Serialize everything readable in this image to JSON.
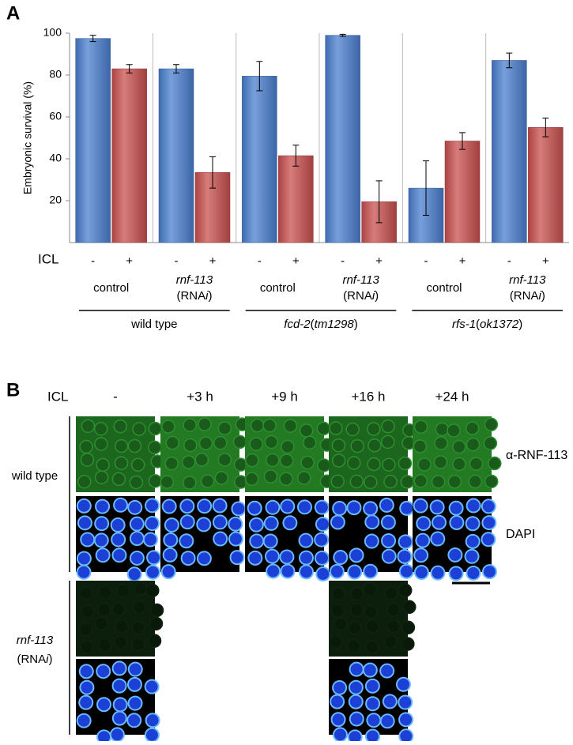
{
  "panel_labels": [
    "A",
    "B"
  ],
  "chart_data": {
    "type": "bar",
    "y_label": "Embryonic survival (%)",
    "x_row_label": "ICL",
    "ylim": [
      0,
      100
    ],
    "yticks": [
      20,
      40,
      60,
      80,
      100
    ],
    "categories": [
      [
        [
          {
            "text": "control"
          }
        ]
      ],
      [
        [
          {
            "text": "rnf-113",
            "italic": true
          }
        ],
        [
          {
            "text": "(RNA"
          },
          {
            "text": "i",
            "italic": true
          },
          {
            "text": ")"
          }
        ]
      ],
      [
        [
          {
            "text": "control"
          }
        ]
      ],
      [
        [
          {
            "text": "rnf-113",
            "italic": true
          }
        ],
        [
          {
            "text": "(RNA"
          },
          {
            "text": "i",
            "italic": true
          },
          {
            "text": ")"
          }
        ]
      ],
      [
        [
          {
            "text": "control"
          }
        ]
      ],
      [
        [
          {
            "text": "rnf-113",
            "italic": true
          }
        ],
        [
          {
            "text": "(RNA"
          },
          {
            "text": "i",
            "italic": true
          },
          {
            "text": ")"
          }
        ]
      ]
    ],
    "genotypes": [
      [
        {
          "text": "wild type"
        }
      ],
      [
        {
          "text": "fcd-2",
          "italic": true
        },
        {
          "text": "("
        },
        {
          "text": "tm1298",
          "italic": true
        },
        {
          "text": ")"
        }
      ],
      [
        {
          "text": "rfs-1",
          "italic": true
        },
        {
          "text": "("
        },
        {
          "text": "ok1372",
          "italic": true
        },
        {
          "text": ")"
        }
      ]
    ],
    "series": [
      {
        "name": "-",
        "color": "#4a7fcf",
        "values": [
          97.5,
          83,
          79.5,
          99,
          26,
          87
        ],
        "errors": [
          1.5,
          2,
          7,
          0.5,
          13,
          3.5
        ]
      },
      {
        "name": "+",
        "color": "#c9504f",
        "values": [
          83,
          33.5,
          41.5,
          19.5,
          48.5,
          55
        ],
        "errors": [
          2,
          7.5,
          5,
          10,
          4,
          4.5
        ]
      }
    ]
  },
  "panel_b": {
    "row_header": "ICL",
    "columns": [
      "-",
      "+3 h",
      "+9 h",
      "+16 h",
      "+24 h"
    ],
    "stains": [
      "α-RNF-113",
      "DAPI"
    ],
    "rows": [
      {
        "label": [
          [
            {
              "text": "wild type"
            }
          ]
        ],
        "shown": [
          0,
          1,
          2,
          3,
          4
        ]
      },
      {
        "label": [
          [
            {
              "text": "rnf-113",
              "italic": true
            }
          ],
          [
            {
              "text": "(RNA"
            },
            {
              "text": "i",
              "italic": true
            },
            {
              "text": ")"
            }
          ]
        ],
        "shown": [
          0,
          3
        ]
      }
    ]
  }
}
